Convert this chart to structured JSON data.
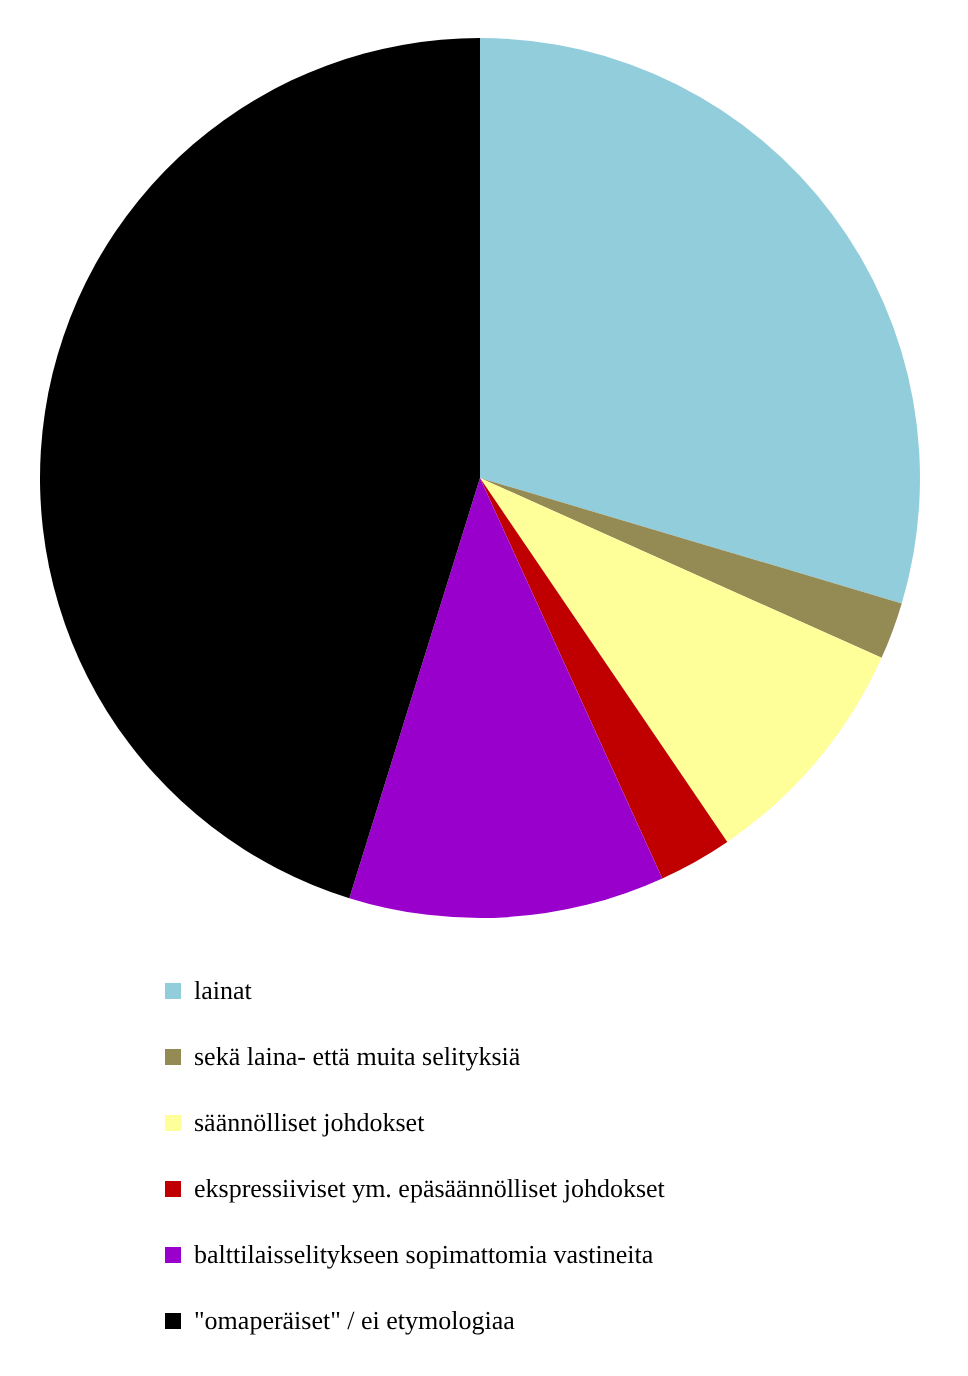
{
  "chart_data": {
    "type": "pie",
    "categories": [
      "lainat",
      "sekä laina- että muita selityksiä",
      "säännölliset johdokset",
      "ekspressiiviset ym. epäsäännölliset johdokset",
      "balttilaisselitykseen sopimattomia vastineita",
      "\"omaperäiset\" / ei etymologiaa"
    ],
    "values": [
      29.6,
      2.1,
      8.8,
      2.7,
      11.6,
      45.2
    ],
    "colors": [
      "#92cddc",
      "#948a54",
      "#ffff99",
      "#c00000",
      "#9900cc",
      "#000000"
    ],
    "legend": "bottom"
  }
}
